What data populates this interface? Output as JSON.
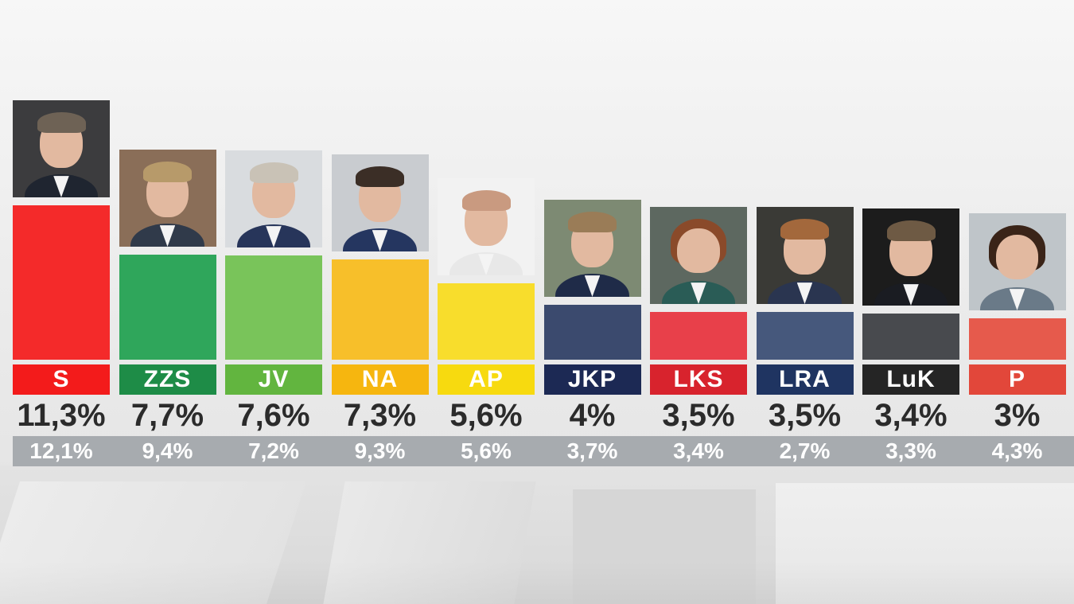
{
  "chart_data": {
    "type": "bar",
    "categories": [
      "S",
      "ZZS",
      "JV",
      "NA",
      "AP",
      "JKP",
      "LKS",
      "LRA",
      "LuK",
      "P"
    ],
    "series": [
      {
        "values": [
          11.3,
          7.7,
          7.6,
          7.3,
          5.6,
          4.0,
          3.5,
          3.5,
          3.4,
          3.0
        ]
      },
      {
        "values": [
          12.1,
          9.4,
          7.2,
          9.3,
          5.6,
          3.7,
          3.4,
          2.7,
          3.3,
          4.3
        ]
      }
    ],
    "value_labels": [
      "11,3%",
      "7,7%",
      "7,6%",
      "7,3%",
      "5,6%",
      "4%",
      "3,5%",
      "3,5%",
      "3,4%",
      "3%"
    ],
    "previous_labels": [
      "12,1%",
      "9,4%",
      "7,2%",
      "9,3%",
      "5,6%",
      "3,7%",
      "3,4%",
      "2,7%",
      "3,3%",
      "4,3%"
    ],
    "colors": {
      "bars": [
        "#f42a2a",
        "#2fa65b",
        "#79c45a",
        "#f7bf2a",
        "#f8dd2c",
        "#3b4a6e",
        "#e8404a",
        "#46587c",
        "#484a4e",
        "#e65a4c"
      ],
      "labels": [
        "#f31b1b",
        "#1e8c47",
        "#62b53f",
        "#f6b60f",
        "#f7da0f",
        "#1c2954",
        "#d8232d",
        "#1f3461",
        "#252525",
        "#e2473a"
      ]
    },
    "photos": [
      {
        "icon": "man-portrait-icon",
        "bg": "#3c3c3e",
        "hair": "#6e6255",
        "suit": "#1f2530"
      },
      {
        "icon": "man-portrait-icon",
        "bg": "#8a6e58",
        "hair": "#b79a6a",
        "suit": "#303a4a"
      },
      {
        "icon": "man-portrait-icon",
        "bg": "#d9dcdf",
        "hair": "#c9c2b6",
        "suit": "#27355a"
      },
      {
        "icon": "man-portrait-icon",
        "bg": "#c9ccd0",
        "hair": "#3b2e26",
        "suit": "#253660"
      },
      {
        "icon": "man-portrait-icon",
        "bg": "#f2f2f2",
        "hair": "#c99a80",
        "suit": "#e8e8e8"
      },
      {
        "icon": "man-portrait-icon",
        "bg": "#7d8a73",
        "hair": "#9a7c57",
        "suit": "#1f2b48"
      },
      {
        "icon": "woman-portrait-icon",
        "bg": "#5d6860",
        "hair": "#8a4a2a",
        "suit": "#2a5c56"
      },
      {
        "icon": "man-portrait-icon",
        "bg": "#3a3a36",
        "hair": "#a3683c",
        "suit": "#2a3550"
      },
      {
        "icon": "man-portrait-icon",
        "bg": "#1c1c1c",
        "hair": "#6e5a44",
        "suit": "#1a1c22"
      },
      {
        "icon": "woman-portrait-icon",
        "bg": "#bfc5c9",
        "hair": "#3a2418",
        "suit": "#6a7a88"
      }
    ]
  }
}
